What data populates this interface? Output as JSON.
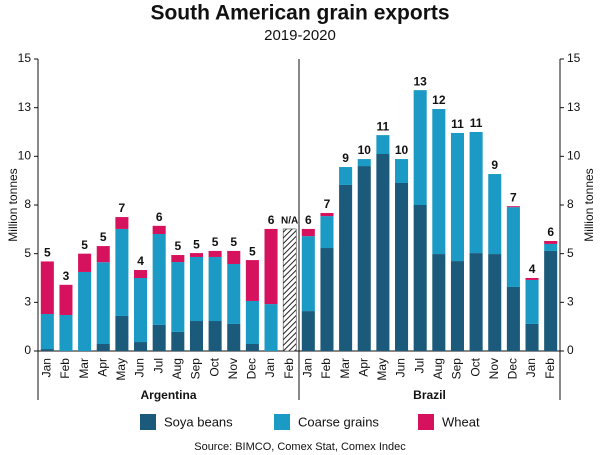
{
  "chart_data": {
    "type": "stacked-bar",
    "title": "South American grain exports",
    "subtitle": "2019-2020",
    "y_label": "Million tonnes",
    "y2_label": "Million tonnes",
    "source": "Source: BIMCO, Comex Stat, Comex Indec",
    "ylim": [
      0,
      15
    ],
    "yticks": [
      0,
      {
        "value": 2.5,
        "label": "3"
      },
      5,
      {
        "value": 7.5,
        "label": "8"
      },
      10,
      {
        "value": 12.5,
        "label": "13"
      },
      15
    ],
    "y2lim": [
      0,
      15
    ],
    "y2ticks": [
      0,
      {
        "value": 2.5,
        "label": "3"
      },
      5,
      {
        "value": 7.5,
        "label": "8"
      },
      10,
      {
        "value": 12.5,
        "label": "13"
      },
      15
    ],
    "series": [
      {
        "name": "Soya beans",
        "color": "#1b5a7a"
      },
      {
        "name": "Coarse grains",
        "color": "#1a9ac4"
      },
      {
        "name": "Wheat",
        "color": "#d6125e"
      }
    ],
    "panels": [
      {
        "label": "Argentina",
        "categories": [
          "Jan",
          "Feb",
          "Mar",
          "Apr",
          "May",
          "Jun",
          "Jul",
          "Aug",
          "Sep",
          "Oct",
          "Nov",
          "Dec",
          "Jan",
          "Feb"
        ],
        "series": [
          {
            "values": [
              0.1,
              0,
              0,
              0.36,
              1.8,
              0.46,
              1.34,
              0.98,
              1.54,
              1.54,
              1.39,
              0.36,
              0,
              null
            ]
          },
          {
            "values": [
              1.8,
              1.85,
              4.06,
              4.2,
              4.47,
              3.29,
              4.67,
              3.59,
              3.29,
              3.29,
              3.08,
              2.21,
              2.41,
              null
            ]
          },
          {
            "values": [
              2.7,
              1.55,
              0.94,
              0.83,
              0.61,
              0.41,
              0.42,
              0.36,
              0.2,
              0.31,
              0.67,
              2.1,
              3.86,
              null
            ]
          }
        ],
        "value_labels": [
          "5",
          "3",
          "5",
          "5",
          "7",
          "4",
          "6",
          "5",
          "5",
          "5",
          "5",
          "5",
          "6",
          "N/A"
        ]
      },
      {
        "label": "Brazil",
        "categories": [
          "Jan",
          "Feb",
          "Mar",
          "Apr",
          "May",
          "Jun",
          "Jul",
          "Aug",
          "Sep",
          "Oct",
          "Nov",
          "Dec",
          "Jan",
          "Feb"
        ],
        "series": [
          {
            "values": [
              2.05,
              5.29,
              8.53,
              9.5,
              10.12,
              8.63,
              7.5,
              4.98,
              4.62,
              5.03,
              4.98,
              3.29,
              1.39,
              5.14
            ]
          },
          {
            "values": [
              3.85,
              1.64,
              0.92,
              0.36,
              0.97,
              1.23,
              5.9,
              7.45,
              6.58,
              6.22,
              4.11,
              4.1,
              2.26,
              0.36
            ]
          },
          {
            "values": [
              0.37,
              0.16,
              0,
              0,
              0,
              0,
              0,
              0,
              0,
              0,
              0,
              0.05,
              0.1,
              0.15
            ]
          }
        ],
        "value_labels": [
          "6",
          "7",
          "9",
          "10",
          "11",
          "10",
          "13",
          "12",
          "11",
          "11",
          "9",
          "7",
          "4",
          "6"
        ]
      }
    ]
  }
}
